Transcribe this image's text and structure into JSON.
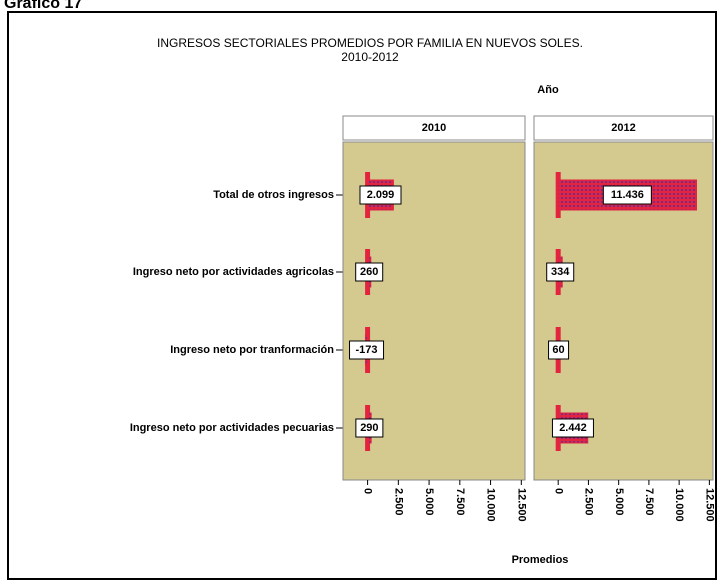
{
  "chart_data": {
    "type": "bar",
    "orientation": "horizontal",
    "figure_label": "Gráfico 17",
    "title": "INGRESOS SECTORIALES PROMEDIOS POR FAMILIA EN NUEVOS SOLES.",
    "subtitle": "2010-2012",
    "facet_label": "Año",
    "xlabel": "Promedios",
    "categories": [
      "Total de otros ingresos",
      "Ingreso neto por actividades agricolas",
      "Ingreso neto por tranformación",
      "Ingreso neto por actividades pecuarias"
    ],
    "series": [
      {
        "name": "2010",
        "color": "#e2243f",
        "values": [
          2099,
          260,
          -173,
          290
        ],
        "value_labels": [
          "2.099",
          "260",
          "-173",
          "290"
        ]
      },
      {
        "name": "2012",
        "color": "#e2243f",
        "values": [
          11436,
          334,
          60,
          2442
        ],
        "value_labels": [
          "11.436",
          "334",
          "60",
          "2.442"
        ]
      }
    ],
    "xlim": [
      -2000,
      12800
    ],
    "xticks": [
      0,
      {
        "value": 2500,
        "label": "2.500"
      },
      {
        "value": 5000,
        "label": "5.000"
      },
      {
        "value": 7500,
        "label": "7.500"
      },
      {
        "value": 10000,
        "label": "10.000"
      },
      {
        "value": 12500,
        "label": "12.500"
      }
    ]
  }
}
